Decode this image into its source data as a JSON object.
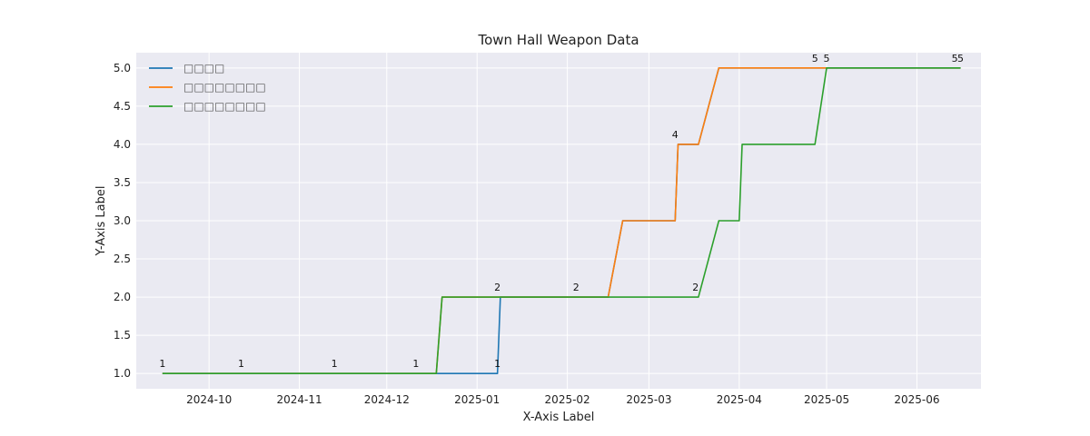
{
  "chart_data": {
    "type": "line",
    "title": "Town Hall Weapon Data",
    "xlabel": "X-Axis Label",
    "ylabel": "Y-Axis Label",
    "x_type": "date",
    "xlim": [
      "2024-09-06",
      "2025-06-23"
    ],
    "ylim": [
      0.8,
      5.2
    ],
    "grid": true,
    "legend_position": "top-left",
    "x_ticks": [
      "2024-10-01",
      "2024-11-01",
      "2024-12-01",
      "2025-01-01",
      "2025-02-01",
      "2025-03-01",
      "2025-04-01",
      "2025-05-01",
      "2025-06-01"
    ],
    "x_tick_labels": [
      "2024-10",
      "2024-11",
      "2024-12",
      "2025-01",
      "2025-02",
      "2025-03",
      "2025-04",
      "2025-05",
      "2025-06"
    ],
    "y_ticks": [
      1.0,
      1.5,
      2.0,
      2.5,
      3.0,
      3.5,
      4.0,
      4.5,
      5.0
    ],
    "y_tick_labels": [
      "1.0",
      "1.5",
      "2.0",
      "2.5",
      "3.0",
      "3.5",
      "4.0",
      "4.5",
      "5.0"
    ],
    "series": [
      {
        "name": "□□□□",
        "color": "#1f77b4",
        "points": [
          {
            "x": "2024-09-15",
            "y": 1
          },
          {
            "x": "2024-10-01",
            "y": 1
          },
          {
            "x": "2024-11-01",
            "y": 1
          },
          {
            "x": "2024-12-01",
            "y": 1
          },
          {
            "x": "2025-01-08",
            "y": 1
          },
          {
            "x": "2025-01-09",
            "y": 2
          },
          {
            "x": "2025-02-01",
            "y": 2
          },
          {
            "x": "2025-02-15",
            "y": 2
          },
          {
            "x": "2025-02-20",
            "y": 3
          },
          {
            "x": "2025-03-10",
            "y": 3
          },
          {
            "x": "2025-03-11",
            "y": 4
          },
          {
            "x": "2025-03-18",
            "y": 4
          },
          {
            "x": "2025-03-25",
            "y": 5
          },
          {
            "x": "2025-05-01",
            "y": 5
          },
          {
            "x": "2025-06-16",
            "y": 5
          }
        ]
      },
      {
        "name": "□□□□□□□□",
        "color": "#ff7f0e",
        "points": [
          {
            "x": "2024-09-15",
            "y": 1
          },
          {
            "x": "2024-12-18",
            "y": 1
          },
          {
            "x": "2024-12-20",
            "y": 2
          },
          {
            "x": "2025-02-15",
            "y": 2
          },
          {
            "x": "2025-02-20",
            "y": 3
          },
          {
            "x": "2025-03-10",
            "y": 3
          },
          {
            "x": "2025-03-11",
            "y": 4
          },
          {
            "x": "2025-03-18",
            "y": 4
          },
          {
            "x": "2025-03-25",
            "y": 5
          },
          {
            "x": "2025-06-16",
            "y": 5
          }
        ]
      },
      {
        "name": "□□□□□□□□",
        "color": "#2ca02c",
        "points": [
          {
            "x": "2024-09-15",
            "y": 1
          },
          {
            "x": "2024-12-18",
            "y": 1
          },
          {
            "x": "2024-12-20",
            "y": 2
          },
          {
            "x": "2025-03-18",
            "y": 2
          },
          {
            "x": "2025-03-25",
            "y": 3
          },
          {
            "x": "2025-04-01",
            "y": 3
          },
          {
            "x": "2025-04-02",
            "y": 4
          },
          {
            "x": "2025-04-27",
            "y": 4
          },
          {
            "x": "2025-05-01",
            "y": 5
          },
          {
            "x": "2025-06-16",
            "y": 5
          }
        ]
      }
    ],
    "annotations": [
      {
        "text": "1",
        "x": "2024-09-15",
        "y": 1
      },
      {
        "text": "1",
        "x": "2024-10-12",
        "y": 1
      },
      {
        "text": "1",
        "x": "2024-11-13",
        "y": 1
      },
      {
        "text": "1",
        "x": "2024-12-11",
        "y": 1
      },
      {
        "text": "1",
        "x": "2025-01-08",
        "y": 1
      },
      {
        "text": "2",
        "x": "2025-01-08",
        "y": 2
      },
      {
        "text": "2",
        "x": "2025-02-04",
        "y": 2
      },
      {
        "text": "2",
        "x": "2025-03-17",
        "y": 2
      },
      {
        "text": "4",
        "x": "2025-03-10",
        "y": 4
      },
      {
        "text": "5",
        "x": "2025-04-27",
        "y": 5
      },
      {
        "text": "5",
        "x": "2025-05-01",
        "y": 5
      },
      {
        "text": "5",
        "x": "2025-06-14",
        "y": 5
      },
      {
        "text": "5",
        "x": "2025-06-16",
        "y": 5
      }
    ]
  }
}
